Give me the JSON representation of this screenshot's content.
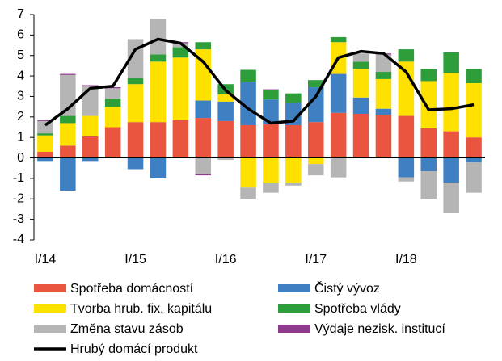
{
  "chart_data": {
    "type": "bar",
    "stacked": true,
    "categories": [
      "I/14",
      null,
      null,
      null,
      "I/15",
      null,
      null,
      null,
      "I/16",
      null,
      null,
      null,
      "I/17",
      null,
      null,
      null,
      "I/18",
      null,
      null,
      null
    ],
    "ylim": [
      -4,
      7
    ],
    "yticks": [
      -4,
      -3,
      -2,
      -1,
      0,
      1,
      2,
      3,
      4,
      5,
      6,
      7
    ],
    "grid": false,
    "legend": "bottom",
    "series": [
      {
        "name": "Spotřeba domácností",
        "color": "#e9553f",
        "values": [
          0.3,
          0.6,
          1.05,
          1.5,
          1.75,
          1.75,
          1.85,
          1.95,
          1.8,
          1.6,
          1.65,
          1.6,
          1.75,
          2.2,
          2.15,
          2.1,
          2.05,
          1.45,
          1.3,
          1.0
        ]
      },
      {
        "name": "Čistý vývoz",
        "color": "#3f80c2",
        "values": [
          -0.15,
          -1.6,
          -0.15,
          0,
          -0.55,
          -1.0,
          0,
          0.85,
          0.95,
          2.1,
          1.2,
          1.1,
          1.7,
          1.9,
          0.8,
          0.3,
          -0.95,
          -0.65,
          -1.2,
          -0.2
        ]
      },
      {
        "name": "Tvorba hrub. fix. kapitálu",
        "color": "#ffe100",
        "values": [
          0.8,
          1.1,
          1.0,
          1.0,
          1.85,
          2.95,
          3.05,
          2.5,
          0.35,
          -1.45,
          -1.2,
          -1.2,
          -0.3,
          1.55,
          1.4,
          1.45,
          2.65,
          2.3,
          2.85,
          2.65
        ]
      },
      {
        "name": "Spotřeba vlády",
        "color": "#2e9e3a",
        "values": [
          0.1,
          0.35,
          0,
          0.4,
          0.3,
          0.35,
          0.5,
          0.35,
          0.5,
          0.6,
          0.45,
          0.45,
          0.35,
          0.25,
          0.35,
          0.35,
          0.6,
          0.6,
          1.0,
          0.7
        ]
      },
      {
        "name": "Změna stavu zásob",
        "color": "#b5b5b5",
        "values": [
          0.6,
          2.0,
          1.45,
          0.5,
          1.9,
          1.75,
          0.2,
          -0.8,
          -0.1,
          -0.55,
          -0.5,
          -0.15,
          -0.55,
          -0.95,
          0.4,
          0.85,
          -0.2,
          -1.35,
          -1.5,
          -1.5
        ]
      },
      {
        "name": "Výdaje nezisk. institucí",
        "color": "#8e3b8e",
        "values": [
          0.05,
          0.05,
          0.05,
          0.05,
          0,
          0,
          0.05,
          -0.05,
          0,
          0,
          0.05,
          0,
          0,
          0,
          0,
          0.05,
          0,
          0,
          0,
          0
        ]
      },
      {
        "name": "Hrubý domácí produkt",
        "type": "line",
        "color": "#000000",
        "values": [
          1.6,
          2.4,
          3.4,
          3.5,
          5.3,
          5.8,
          5.6,
          4.7,
          3.3,
          2.4,
          1.7,
          1.8,
          3.0,
          4.9,
          5.2,
          5.1,
          4.2,
          2.35,
          2.4,
          2.6
        ]
      }
    ]
  }
}
